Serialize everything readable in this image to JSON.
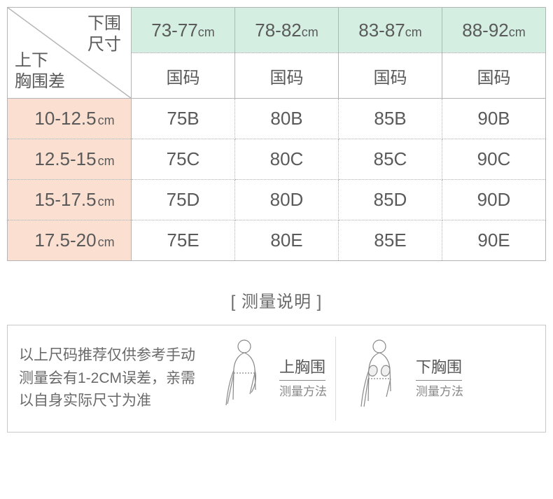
{
  "corner": {
    "top": "下围\n尺寸",
    "bottom": "上下\n胸围差"
  },
  "columns": [
    {
      "range": "73-77",
      "unit": "cm"
    },
    {
      "range": "78-82",
      "unit": "cm"
    },
    {
      "range": "83-87",
      "unit": "cm"
    },
    {
      "range": "88-92",
      "unit": "cm"
    }
  ],
  "sub_header": "国码",
  "rows": [
    {
      "range": "10-12.5",
      "unit": "cm",
      "cells": [
        "75B",
        "80B",
        "85B",
        "90B"
      ]
    },
    {
      "range": "12.5-15",
      "unit": "cm",
      "cells": [
        "75C",
        "80C",
        "85C",
        "90C"
      ]
    },
    {
      "range": "15-17.5",
      "unit": "cm",
      "cells": [
        "75D",
        "80D",
        "85D",
        "90D"
      ]
    },
    {
      "range": "17.5-20",
      "unit": "cm",
      "cells": [
        "75E",
        "80E",
        "85E",
        "90E"
      ]
    }
  ],
  "instruction_title": "[ 测量说明 ]",
  "instruction_text": "以上尺码推荐仅供参考手动测量会有1-2CM误差，亲需以自身实际尺寸为准",
  "measure": {
    "upper": {
      "title": "上胸围",
      "subtitle": "测量方法"
    },
    "lower": {
      "title": "下胸围",
      "subtitle": "测量方法"
    }
  },
  "colors": {
    "col_head_bg": "#d4eee2",
    "row_head_bg": "#fbe0d2",
    "border": "#b5b5b5",
    "dotted": "#b0b0b0",
    "text": "#5a5a5a"
  }
}
